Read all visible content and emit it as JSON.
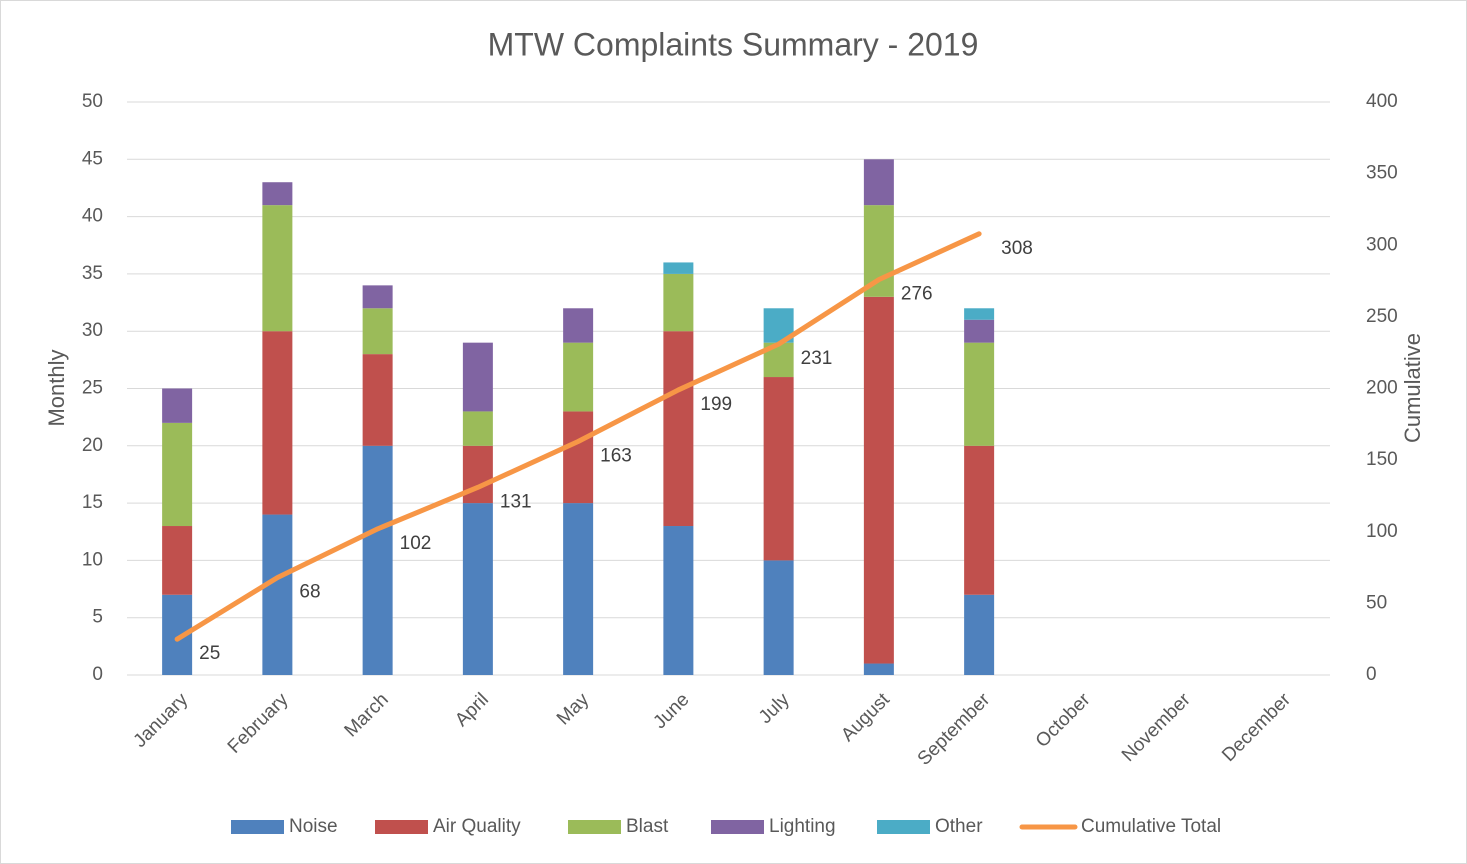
{
  "chart_data": {
    "type": "bar",
    "stacked": true,
    "title": "MTW Complaints Summary - 2019",
    "y_label": "Monthly",
    "y2_label": "Cumulative",
    "categories": [
      "January",
      "February",
      "March",
      "April",
      "May",
      "June",
      "July",
      "August",
      "September",
      "October",
      "November",
      "December"
    ],
    "series": [
      {
        "name": "Noise",
        "color": "#4f81bd",
        "values": [
          7,
          14,
          20,
          15,
          15,
          13,
          10,
          1,
          7,
          null,
          null,
          null
        ]
      },
      {
        "name": "Air Quality",
        "color": "#c0504d",
        "values": [
          6,
          16,
          8,
          5,
          8,
          17,
          16,
          32,
          13,
          null,
          null,
          null
        ]
      },
      {
        "name": "Blast",
        "color": "#9bbb59",
        "values": [
          9,
          11,
          4,
          3,
          6,
          5,
          3,
          8,
          9,
          null,
          null,
          null
        ]
      },
      {
        "name": "Lighting",
        "color": "#8064a2",
        "values": [
          3,
          2,
          2,
          6,
          3,
          0,
          0,
          4,
          2,
          null,
          null,
          null
        ]
      },
      {
        "name": "Other",
        "color": "#4bacc6",
        "values": [
          0,
          0,
          0,
          0,
          0,
          1,
          3,
          0,
          1,
          null,
          null,
          null
        ]
      },
      {
        "name": "Cumulative Total",
        "color": "#f79646",
        "type": "line",
        "axis": "y2",
        "values": [
          25,
          68,
          102,
          131,
          163,
          199,
          231,
          276,
          308,
          null,
          null,
          null
        ]
      }
    ],
    "ylim": [
      0,
      50
    ],
    "yticks": [
      0,
      5,
      10,
      15,
      20,
      25,
      30,
      35,
      40,
      45,
      50
    ],
    "y2lim": [
      0,
      400
    ],
    "y2ticks": [
      0,
      50,
      100,
      150,
      200,
      250,
      300,
      350,
      400
    ],
    "grid": true,
    "legend": "bottom"
  }
}
